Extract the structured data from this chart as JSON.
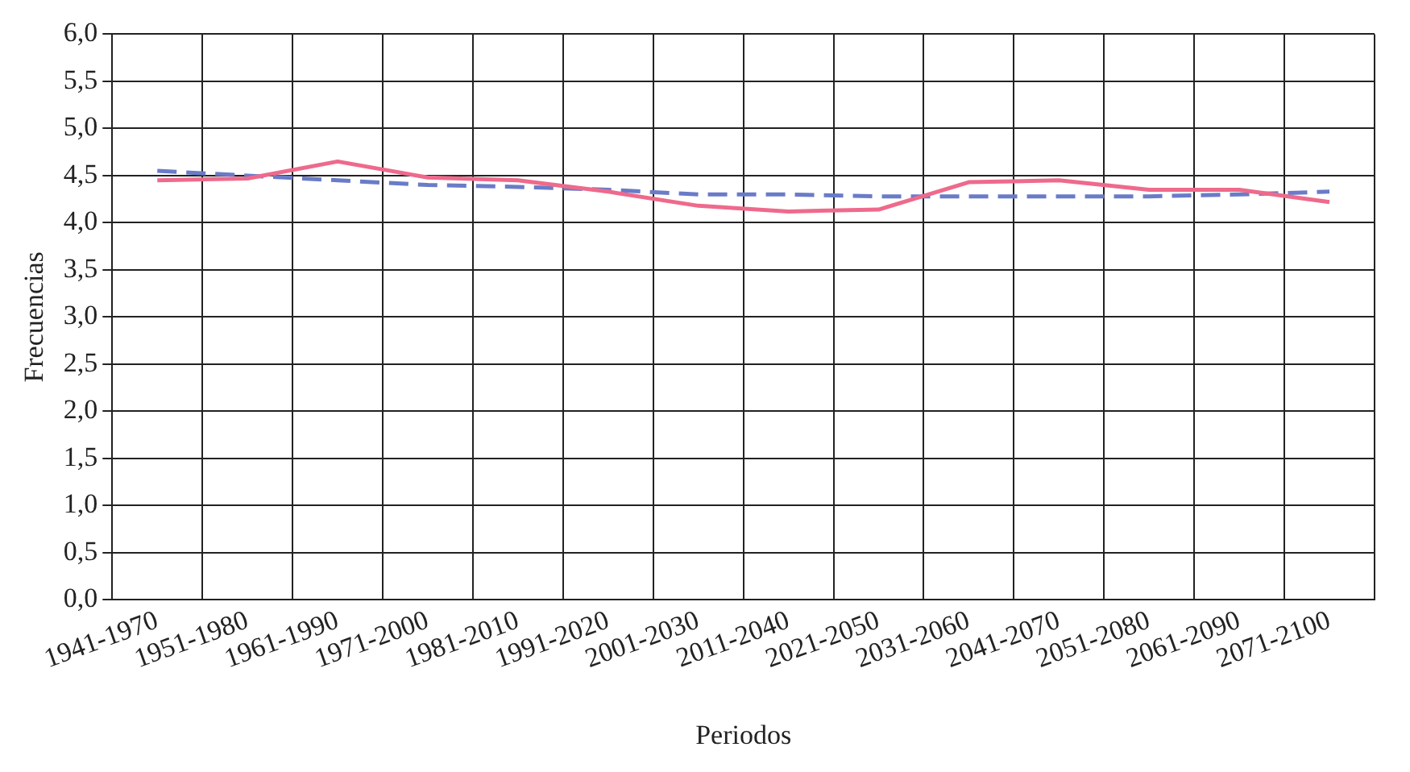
{
  "chart_data": {
    "type": "line",
    "xlabel": "Periodos",
    "ylabel": "Frecuencias",
    "categories": [
      "1941-1970",
      "1951-1980",
      "1961-1990",
      "1971-2000",
      "1981-2010",
      "1991-2020",
      "2001-2030",
      "2011-2040",
      "2021-2050",
      "2031-2060",
      "2041-2070",
      "2051-2080",
      "2061-2090",
      "2071-2100"
    ],
    "series": [
      {
        "color": "#ee6a8c",
        "line_style": "solid",
        "values": [
          4.45,
          4.47,
          4.65,
          4.48,
          4.45,
          4.33,
          4.18,
          4.12,
          4.14,
          4.43,
          4.45,
          4.35,
          4.35,
          4.22
        ]
      },
      {
        "color": "#6a7bc8",
        "line_style": "dashed",
        "values": [
          4.55,
          4.5,
          4.45,
          4.4,
          4.38,
          4.35,
          4.3,
          4.3,
          4.28,
          4.28,
          4.28,
          4.28,
          4.3,
          4.33
        ]
      }
    ],
    "ylim": [
      0,
      6
    ],
    "yticks": [
      {
        "value": 0,
        "label": "0,0"
      },
      {
        "value": 0.5,
        "label": "0,5"
      },
      {
        "value": 1,
        "label": "1,0"
      },
      {
        "value": 1.5,
        "label": "1,5"
      },
      {
        "value": 2,
        "label": "2,0"
      },
      {
        "value": 2.5,
        "label": "2,5"
      },
      {
        "value": 3,
        "label": "3,0"
      },
      {
        "value": 3.5,
        "label": "3,5"
      },
      {
        "value": 4,
        "label": "4,0"
      },
      {
        "value": 4.5,
        "label": "4,5"
      },
      {
        "value": 5,
        "label": "5,0"
      },
      {
        "value": 5.5,
        "label": "5,5"
      },
      {
        "value": 6,
        "label": "6,0"
      }
    ],
    "grid": true,
    "legend": false,
    "marker": "none"
  }
}
